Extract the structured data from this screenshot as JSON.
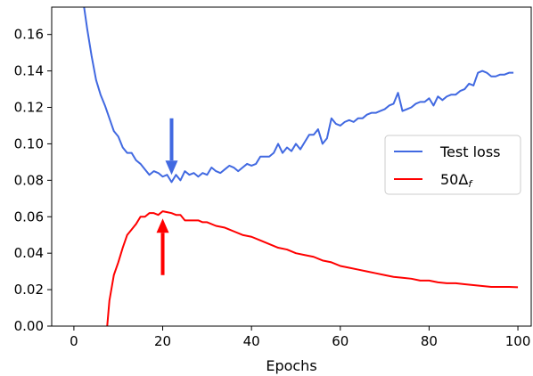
{
  "chart_data": {
    "type": "line",
    "title": "",
    "xlabel": "Epochs",
    "ylabel": "",
    "xlim": [
      -5,
      103
    ],
    "ylim": [
      0,
      0.175
    ],
    "xticks": [
      0,
      20,
      40,
      60,
      80,
      100
    ],
    "yticks": [
      0.0,
      0.02,
      0.04,
      0.06,
      0.08,
      0.1,
      0.12,
      0.14,
      0.16
    ],
    "xtick_labels": [
      "0",
      "20",
      "40",
      "60",
      "80",
      "100"
    ],
    "ytick_labels": [
      "0.00",
      "0.02",
      "0.04",
      "0.06",
      "0.08",
      "0.10",
      "0.12",
      "0.14",
      "0.16"
    ],
    "grid": false,
    "legend_position": "right",
    "legend_entries": [
      "Test loss",
      "50Δf"
    ],
    "series": [
      {
        "name": "Test loss",
        "color": "#4169e1",
        "x": [
          2,
          3,
          4,
          5,
          6,
          7,
          8,
          9,
          10,
          11,
          12,
          13,
          14,
          15,
          16,
          17,
          18,
          19,
          20,
          21,
          22,
          23,
          24,
          25,
          26,
          27,
          28,
          29,
          30,
          31,
          32,
          33,
          34,
          35,
          36,
          37,
          38,
          39,
          40,
          41,
          42,
          43,
          44,
          45,
          46,
          47,
          48,
          49,
          50,
          51,
          52,
          53,
          54,
          55,
          56,
          57,
          58,
          59,
          60,
          61,
          62,
          63,
          64,
          65,
          66,
          67,
          68,
          69,
          70,
          71,
          72,
          73,
          74,
          75,
          76,
          77,
          78,
          79,
          80,
          81,
          82,
          83,
          84,
          85,
          86,
          87,
          88,
          89,
          90,
          91,
          92,
          93,
          94,
          95,
          96,
          97,
          98,
          99
        ],
        "y": [
          0.18,
          0.163,
          0.148,
          0.135,
          0.127,
          0.121,
          0.114,
          0.107,
          0.104,
          0.098,
          0.095,
          0.095,
          0.091,
          0.089,
          0.086,
          0.083,
          0.085,
          0.084,
          0.082,
          0.083,
          0.079,
          0.083,
          0.08,
          0.085,
          0.083,
          0.084,
          0.082,
          0.084,
          0.083,
          0.087,
          0.085,
          0.084,
          0.086,
          0.088,
          0.087,
          0.085,
          0.087,
          0.089,
          0.088,
          0.089,
          0.093,
          0.093,
          0.093,
          0.095,
          0.1,
          0.095,
          0.098,
          0.096,
          0.1,
          0.097,
          0.101,
          0.105,
          0.105,
          0.108,
          0.1,
          0.103,
          0.114,
          0.111,
          0.11,
          0.112,
          0.113,
          0.112,
          0.114,
          0.114,
          0.116,
          0.117,
          0.117,
          0.118,
          0.119,
          0.121,
          0.122,
          0.128,
          0.118,
          0.119,
          0.12,
          0.122,
          0.123,
          0.123,
          0.125,
          0.121,
          0.126,
          0.124,
          0.126,
          0.127,
          0.127,
          0.129,
          0.13,
          0.133,
          0.132,
          0.139,
          0.14,
          0.139,
          0.137,
          0.137,
          0.138,
          0.138,
          0.139,
          0.139
        ]
      },
      {
        "name": "50Δf",
        "color": "#ff0000",
        "x": [
          7.5,
          8,
          9,
          10,
          11,
          12,
          13,
          14,
          15,
          16,
          17,
          18,
          19,
          20,
          21,
          22,
          23,
          24,
          25,
          26,
          27,
          28,
          29,
          30,
          32,
          34,
          36,
          38,
          40,
          42,
          44,
          46,
          48,
          50,
          52,
          54,
          56,
          58,
          60,
          62,
          64,
          66,
          68,
          70,
          72,
          74,
          76,
          78,
          80,
          82,
          84,
          86,
          88,
          90,
          92,
          94,
          96,
          98,
          100
        ],
        "y": [
          0.0,
          0.014,
          0.028,
          0.035,
          0.043,
          0.05,
          0.053,
          0.056,
          0.06,
          0.06,
          0.062,
          0.062,
          0.061,
          0.063,
          0.0625,
          0.062,
          0.061,
          0.061,
          0.058,
          0.058,
          0.058,
          0.058,
          0.057,
          0.057,
          0.055,
          0.054,
          0.052,
          0.05,
          0.049,
          0.047,
          0.045,
          0.043,
          0.042,
          0.04,
          0.039,
          0.038,
          0.036,
          0.035,
          0.033,
          0.032,
          0.031,
          0.03,
          0.029,
          0.028,
          0.027,
          0.0265,
          0.026,
          0.025,
          0.025,
          0.024,
          0.0235,
          0.0235,
          0.023,
          0.0225,
          0.022,
          0.0215,
          0.0215,
          0.0215,
          0.0213
        ]
      }
    ],
    "annotations": [
      {
        "type": "arrow",
        "direction": "down",
        "color": "#4169e1",
        "x": 22,
        "y_from": 0.114,
        "y_to": 0.083
      },
      {
        "type": "arrow",
        "direction": "up",
        "color": "#ff0000",
        "x": 20,
        "y_from": 0.028,
        "y_to": 0.059
      }
    ]
  }
}
